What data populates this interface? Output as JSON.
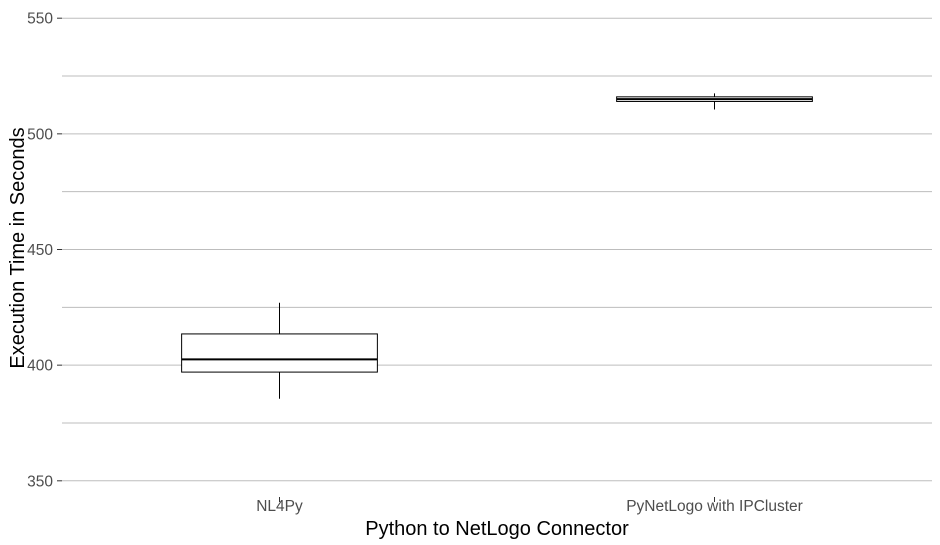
{
  "chart_data": {
    "type": "box",
    "title": "",
    "xlabel": "Python to NetLogo Connector",
    "ylabel": "Execution Time in Seconds",
    "ylim": [
      343,
      557
    ],
    "y_ticks": [
      350,
      400,
      450,
      500,
      550
    ],
    "y_minor_gridlines": [
      375,
      425,
      475,
      525
    ],
    "grid": true,
    "categories": [
      "NL4Py",
      "PyNetLogo with IPCluster"
    ],
    "boxes": [
      {
        "name": "NL4Py",
        "whisker_low": 385.5,
        "q1": 397,
        "median": 402.5,
        "q3": 413.5,
        "whisker_high": 427
      },
      {
        "name": "PyNetLogo with IPCluster",
        "whisker_low": 510.5,
        "q1": 514,
        "median": 515,
        "q3": 516,
        "whisker_high": 517.5
      }
    ],
    "colors": {
      "gridline": "#bdbdbd",
      "box_stroke": "#000000",
      "tick_label": "#4d4d4d",
      "axis_title": "#000000"
    }
  }
}
